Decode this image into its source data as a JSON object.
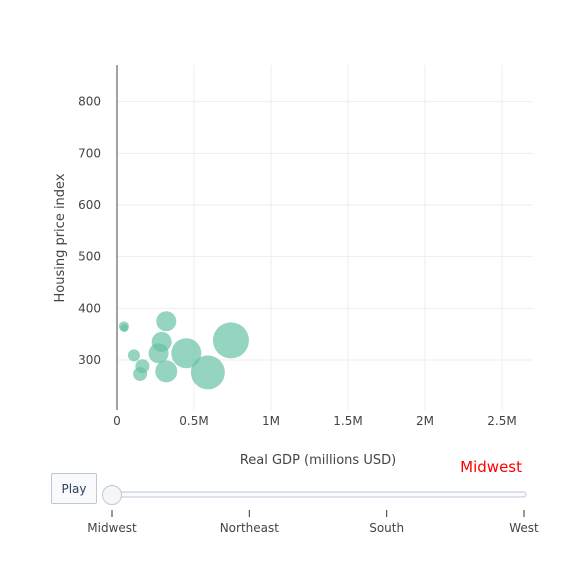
{
  "chart_data": {
    "type": "scatter",
    "subtype": "bubble",
    "xlabel": "Real GDP (millions USD)",
    "ylabel": "Housing price index",
    "xlim": [
      0,
      2700000
    ],
    "ylim": [
      200,
      860
    ],
    "x_ticks": [
      {
        "value": 0,
        "label": "0"
      },
      {
        "value": 500000,
        "label": "0.5M"
      },
      {
        "value": 1000000,
        "label": "1M"
      },
      {
        "value": 1500000,
        "label": "1.5M"
      },
      {
        "value": 2000000,
        "label": "2M"
      },
      {
        "value": 2500000,
        "label": "2.5M"
      }
    ],
    "y_ticks": [
      {
        "value": 300,
        "label": "300"
      },
      {
        "value": 400,
        "label": "400"
      },
      {
        "value": 500,
        "label": "500"
      },
      {
        "value": 600,
        "label": "600"
      },
      {
        "value": 700,
        "label": "700"
      },
      {
        "value": 800,
        "label": "800"
      }
    ],
    "grid": true,
    "marker_color": "#66c2a5",
    "points": [
      {
        "x": 45000,
        "y": 365,
        "size": 5
      },
      {
        "x": 48000,
        "y": 362,
        "size": 4
      },
      {
        "x": 110000,
        "y": 309,
        "size": 6
      },
      {
        "x": 150000,
        "y": 273,
        "size": 7
      },
      {
        "x": 165000,
        "y": 288,
        "size": 7
      },
      {
        "x": 270000,
        "y": 313,
        "size": 10
      },
      {
        "x": 290000,
        "y": 335,
        "size": 10
      },
      {
        "x": 320000,
        "y": 375,
        "size": 10
      },
      {
        "x": 320000,
        "y": 278,
        "size": 11
      },
      {
        "x": 450000,
        "y": 313,
        "size": 15
      },
      {
        "x": 590000,
        "y": 276,
        "size": 17
      },
      {
        "x": 740000,
        "y": 338,
        "size": 18
      }
    ]
  },
  "animation": {
    "play_label": "Play",
    "current_frame_label": "Midwest",
    "frames": [
      "Midwest",
      "Northeast",
      "South",
      "West"
    ],
    "current_index": 0
  }
}
